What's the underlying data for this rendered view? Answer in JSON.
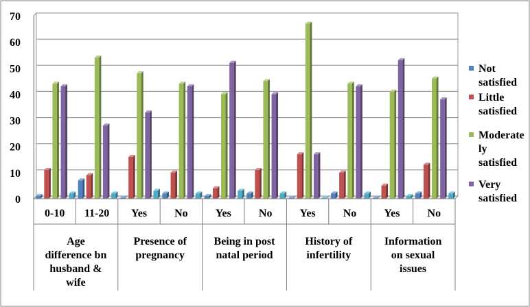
{
  "chart_data": {
    "type": "bar",
    "title": "",
    "xlabel": "",
    "ylabel": "",
    "ylim": [
      0,
      70
    ],
    "yticks": [
      "0",
      "10",
      "20",
      "30",
      "40",
      "50",
      "60",
      "70"
    ],
    "grid": true,
    "legend_position": "right",
    "categories": [
      "0-10",
      "11-20",
      "Yes",
      "No",
      "Yes",
      "No",
      "Yes",
      "No",
      "Yes",
      "No"
    ],
    "groups": [
      {
        "label": "Age difference bn husband & wife",
        "categories": [
          "0-10",
          "11-20"
        ]
      },
      {
        "label": "Presence of pregnancy",
        "categories": [
          "Yes",
          "No"
        ]
      },
      {
        "label": "Being in post natal period",
        "categories": [
          "Yes",
          "No"
        ]
      },
      {
        "label": "History of infertility",
        "categories": [
          "Yes",
          "No"
        ]
      },
      {
        "label": "Information on sexual issues",
        "categories": [
          "Yes",
          "No"
        ]
      }
    ],
    "series": [
      {
        "name": "Not satisfied",
        "color": "#4F81BD",
        "values": [
          1,
          7,
          0.3,
          2,
          1,
          2,
          0.3,
          2,
          0.3,
          2
        ]
      },
      {
        "name": "Little satisfied",
        "color": "#C0504D",
        "values": [
          11,
          9,
          16,
          10,
          4,
          11,
          17,
          10,
          5,
          13
        ]
      },
      {
        "name": "Moderately satisfied",
        "color": "#9BBB59",
        "values": [
          44,
          54,
          48,
          44,
          40,
          45,
          67,
          44,
          41,
          46
        ]
      },
      {
        "name": "Very satisfied",
        "color": "#8064A2",
        "values": [
          43,
          28,
          33,
          43,
          52,
          40,
          17,
          43,
          53,
          38
        ]
      },
      {
        "name": "",
        "color": "#4BACC6",
        "values": [
          2,
          2,
          3,
          2,
          3,
          2,
          0.3,
          2,
          1,
          2
        ]
      }
    ]
  }
}
